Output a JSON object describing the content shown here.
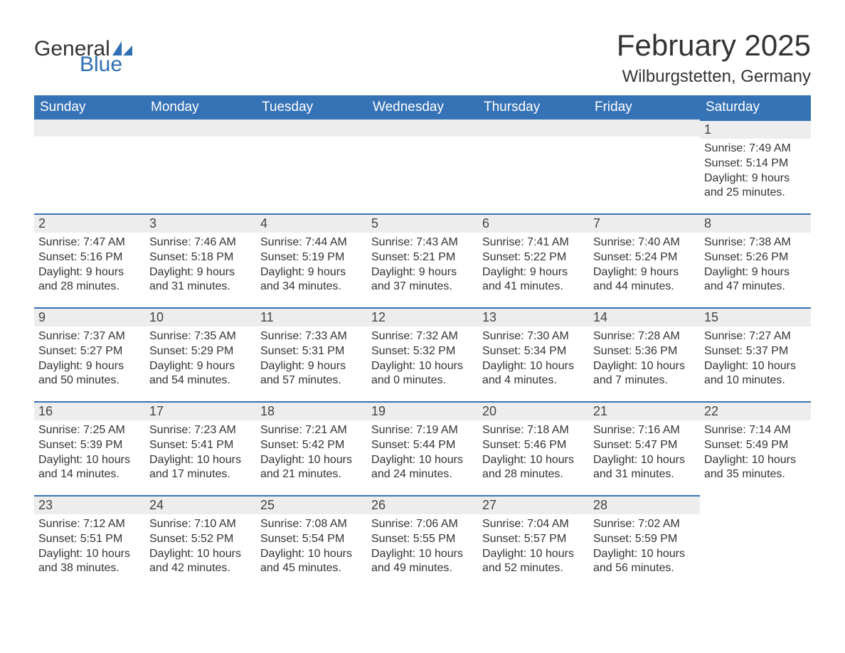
{
  "logo": {
    "word1": "General",
    "word2": "Blue",
    "icon_color": "#2e6fb5"
  },
  "title": "February 2025",
  "location": "Wilburgstetten, Germany",
  "colors": {
    "header_bg": "#3672b6",
    "header_text": "#ffffff",
    "daynum_bg": "#ededed",
    "daynum_border": "#3672b6",
    "body_text": "#333333",
    "logo_text": "#333333",
    "logo_blue": "#2e6fb5",
    "background": "#ffffff"
  },
  "typography": {
    "title_fontsize": 42,
    "location_fontsize": 24,
    "header_fontsize": 19,
    "daynum_fontsize": 18,
    "body_fontsize": 16,
    "logo_fontsize": 30
  },
  "calendar": {
    "columns": [
      "Sunday",
      "Monday",
      "Tuesday",
      "Wednesday",
      "Thursday",
      "Friday",
      "Saturday"
    ],
    "weeks": [
      [
        null,
        null,
        null,
        null,
        null,
        null,
        {
          "day": "1",
          "sunrise": "7:49 AM",
          "sunset": "5:14 PM",
          "daylight": "9 hours and 25 minutes."
        }
      ],
      [
        {
          "day": "2",
          "sunrise": "7:47 AM",
          "sunset": "5:16 PM",
          "daylight": "9 hours and 28 minutes."
        },
        {
          "day": "3",
          "sunrise": "7:46 AM",
          "sunset": "5:18 PM",
          "daylight": "9 hours and 31 minutes."
        },
        {
          "day": "4",
          "sunrise": "7:44 AM",
          "sunset": "5:19 PM",
          "daylight": "9 hours and 34 minutes."
        },
        {
          "day": "5",
          "sunrise": "7:43 AM",
          "sunset": "5:21 PM",
          "daylight": "9 hours and 37 minutes."
        },
        {
          "day": "6",
          "sunrise": "7:41 AM",
          "sunset": "5:22 PM",
          "daylight": "9 hours and 41 minutes."
        },
        {
          "day": "7",
          "sunrise": "7:40 AM",
          "sunset": "5:24 PM",
          "daylight": "9 hours and 44 minutes."
        },
        {
          "day": "8",
          "sunrise": "7:38 AM",
          "sunset": "5:26 PM",
          "daylight": "9 hours and 47 minutes."
        }
      ],
      [
        {
          "day": "9",
          "sunrise": "7:37 AM",
          "sunset": "5:27 PM",
          "daylight": "9 hours and 50 minutes."
        },
        {
          "day": "10",
          "sunrise": "7:35 AM",
          "sunset": "5:29 PM",
          "daylight": "9 hours and 54 minutes."
        },
        {
          "day": "11",
          "sunrise": "7:33 AM",
          "sunset": "5:31 PM",
          "daylight": "9 hours and 57 minutes."
        },
        {
          "day": "12",
          "sunrise": "7:32 AM",
          "sunset": "5:32 PM",
          "daylight": "10 hours and 0 minutes."
        },
        {
          "day": "13",
          "sunrise": "7:30 AM",
          "sunset": "5:34 PM",
          "daylight": "10 hours and 4 minutes."
        },
        {
          "day": "14",
          "sunrise": "7:28 AM",
          "sunset": "5:36 PM",
          "daylight": "10 hours and 7 minutes."
        },
        {
          "day": "15",
          "sunrise": "7:27 AM",
          "sunset": "5:37 PM",
          "daylight": "10 hours and 10 minutes."
        }
      ],
      [
        {
          "day": "16",
          "sunrise": "7:25 AM",
          "sunset": "5:39 PM",
          "daylight": "10 hours and 14 minutes."
        },
        {
          "day": "17",
          "sunrise": "7:23 AM",
          "sunset": "5:41 PM",
          "daylight": "10 hours and 17 minutes."
        },
        {
          "day": "18",
          "sunrise": "7:21 AM",
          "sunset": "5:42 PM",
          "daylight": "10 hours and 21 minutes."
        },
        {
          "day": "19",
          "sunrise": "7:19 AM",
          "sunset": "5:44 PM",
          "daylight": "10 hours and 24 minutes."
        },
        {
          "day": "20",
          "sunrise": "7:18 AM",
          "sunset": "5:46 PM",
          "daylight": "10 hours and 28 minutes."
        },
        {
          "day": "21",
          "sunrise": "7:16 AM",
          "sunset": "5:47 PM",
          "daylight": "10 hours and 31 minutes."
        },
        {
          "day": "22",
          "sunrise": "7:14 AM",
          "sunset": "5:49 PM",
          "daylight": "10 hours and 35 minutes."
        }
      ],
      [
        {
          "day": "23",
          "sunrise": "7:12 AM",
          "sunset": "5:51 PM",
          "daylight": "10 hours and 38 minutes."
        },
        {
          "day": "24",
          "sunrise": "7:10 AM",
          "sunset": "5:52 PM",
          "daylight": "10 hours and 42 minutes."
        },
        {
          "day": "25",
          "sunrise": "7:08 AM",
          "sunset": "5:54 PM",
          "daylight": "10 hours and 45 minutes."
        },
        {
          "day": "26",
          "sunrise": "7:06 AM",
          "sunset": "5:55 PM",
          "daylight": "10 hours and 49 minutes."
        },
        {
          "day": "27",
          "sunrise": "7:04 AM",
          "sunset": "5:57 PM",
          "daylight": "10 hours and 52 minutes."
        },
        {
          "day": "28",
          "sunrise": "7:02 AM",
          "sunset": "5:59 PM",
          "daylight": "10 hours and 56 minutes."
        },
        null
      ]
    ],
    "labels": {
      "sunrise_prefix": "Sunrise: ",
      "sunset_prefix": "Sunset: ",
      "daylight_prefix": "Daylight: "
    }
  }
}
